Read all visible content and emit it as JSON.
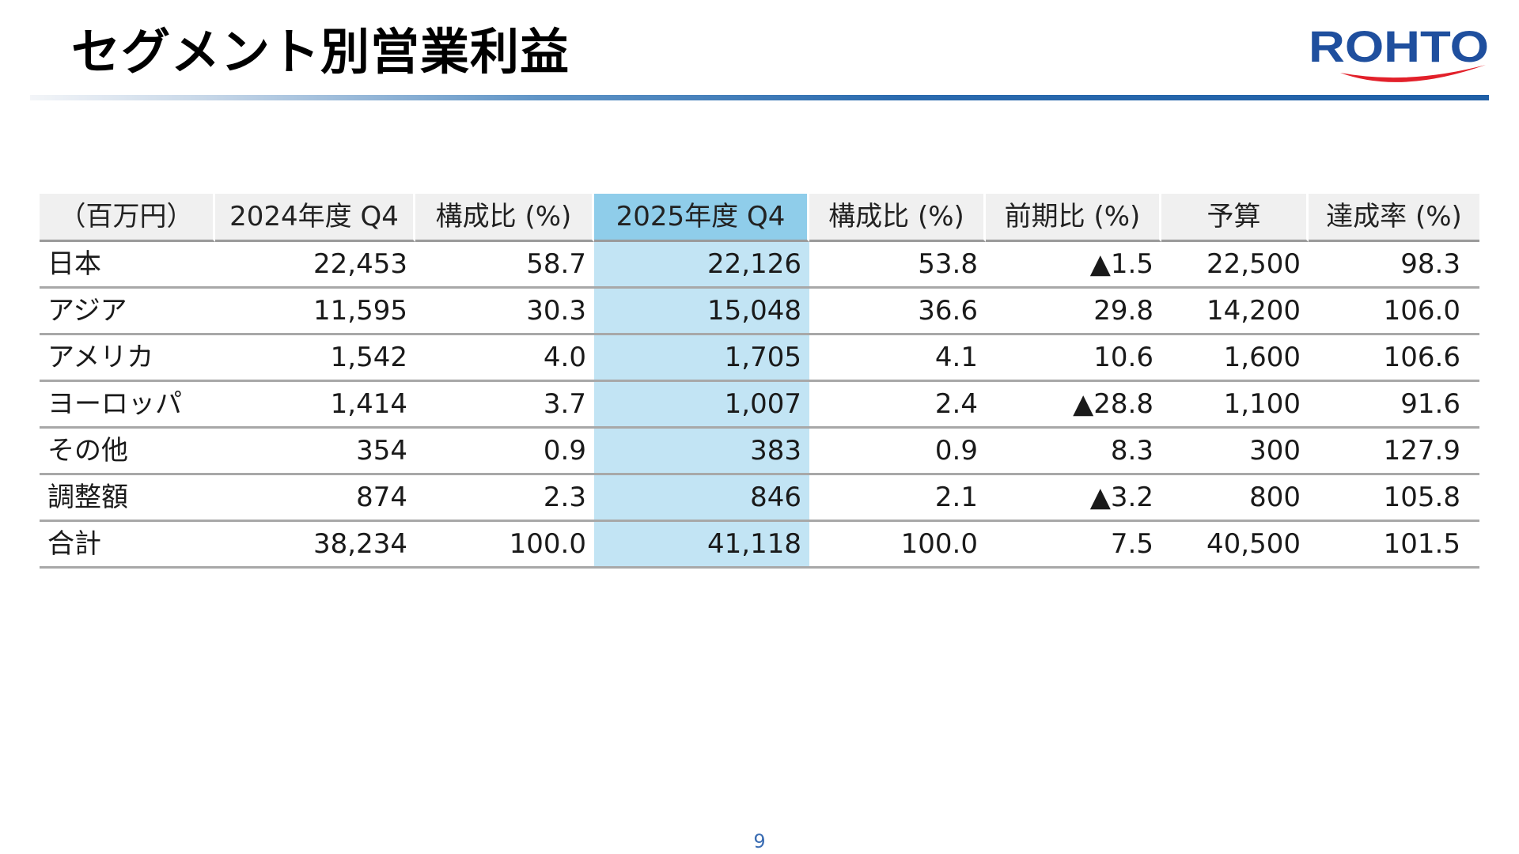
{
  "slide": {
    "title": "セグメント別営業利益",
    "page_number": "9"
  },
  "logo": {
    "text": "ROHTO",
    "brand_color": "#1f4f9e",
    "swoosh_color": "#e2202a"
  },
  "colors": {
    "accent_rule": "#1f5fa6",
    "highlight_header": "#8fcdea",
    "highlight_column": "#c2e4f4",
    "header_background": "#f0f0f0"
  },
  "table": {
    "headers": [
      "（百万円）",
      "2024年度 Q4",
      "構成比 (%)",
      "2025年度 Q4",
      "構成比 (%)",
      "前期比 (%)",
      "予算",
      "達成率 (%)"
    ],
    "rows": [
      [
        "日本",
        "22,453",
        "58.7",
        "22,126",
        "53.8",
        "▲1.5",
        "22,500",
        "98.3"
      ],
      [
        "アジア",
        "11,595",
        "30.3",
        "15,048",
        "36.6",
        "29.8",
        "14,200",
        "106.0"
      ],
      [
        "アメリカ",
        "1,542",
        "4.0",
        "1,705",
        "4.1",
        "10.6",
        "1,600",
        "106.6"
      ],
      [
        "ヨーロッパ",
        "1,414",
        "3.7",
        "1,007",
        "2.4",
        "▲28.8",
        "1,100",
        "91.6"
      ],
      [
        "その他",
        "354",
        "0.9",
        "383",
        "0.9",
        "8.3",
        "300",
        "127.9"
      ],
      [
        "調整額",
        "874",
        "2.3",
        "846",
        "2.1",
        "▲3.2",
        "800",
        "105.8"
      ],
      [
        "合計",
        "38,234",
        "100.0",
        "41,118",
        "100.0",
        "7.5",
        "40,500",
        "101.5"
      ]
    ]
  }
}
